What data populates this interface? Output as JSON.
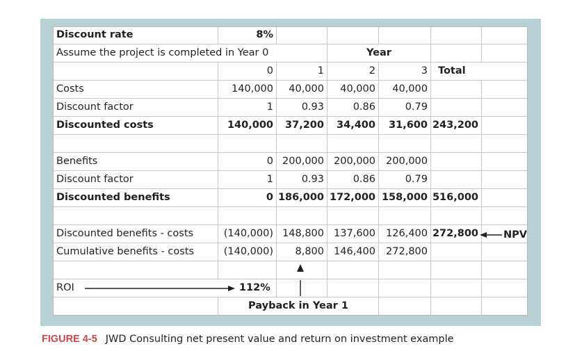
{
  "header": {
    "discount_rate_label": "Discount rate",
    "discount_rate_value": "8%",
    "assume_text": "Assume the project is completed in Year 0",
    "year_label": "Year",
    "col0": "0",
    "col1": "1",
    "col2": "2",
    "col3": "3",
    "total_label": "Total"
  },
  "rows": {
    "costs": {
      "label": "Costs",
      "values": [
        "140,000",
        "40,000",
        "40,000",
        "40,000",
        ""
      ]
    },
    "discount_factor_costs": {
      "label": "Discount factor",
      "values": [
        "1",
        "0.93",
        "0.86",
        "0.79",
        ""
      ]
    },
    "discounted_costs": {
      "label": "Discounted costs",
      "values": [
        "140,000",
        "37,200",
        "34,400",
        "31,600",
        "243,200"
      ]
    },
    "benefits": {
      "label": "Benefits",
      "values": [
        "0",
        "200,000",
        "200,000",
        "200,000",
        ""
      ]
    },
    "discount_factor_benefits": {
      "label": "Discount factor",
      "values": [
        "1",
        "0.93",
        "0.86",
        "0.79",
        ""
      ]
    },
    "discounted_benefits": {
      "label": "Discounted benefits",
      "values": [
        "0",
        "186,000",
        "172,000",
        "158,000",
        "516,000"
      ]
    },
    "net": {
      "label": "Discounted benefits - costs",
      "values": [
        "(140,000)",
        "148,800",
        "137,600",
        "126,400",
        "272,800"
      ]
    },
    "cumulative": {
      "label": "Cumulative benefits - costs",
      "values": [
        "(140,000)",
        "8,800",
        "146,400",
        "272,800",
        ""
      ]
    }
  },
  "roi": {
    "label": "ROI",
    "value": "112%"
  },
  "payback_text": "Payback in Year 1",
  "npv_label": "NPV",
  "caption": {
    "figure_number": "FIGURE 4-5",
    "text": "JWD Consulting net present value and return on investment example"
  },
  "colors": {
    "frame": "#b9cfd6",
    "caption_accent": "#d0454c"
  }
}
